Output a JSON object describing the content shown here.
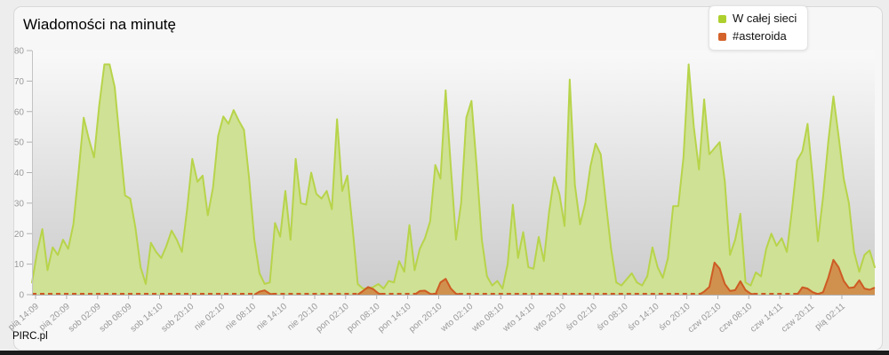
{
  "page": {
    "brand": "PIRC.pl"
  },
  "chart_data": {
    "type": "area",
    "title": "Wiadomości na minutę",
    "ylim": [
      0,
      80
    ],
    "y_tick_step": 10,
    "grid": false,
    "legend_position": "top-right",
    "plot_bg_gradient": [
      "#f9f9f9",
      "#cbcbcb"
    ],
    "x_tick_labels": [
      "pią 14:09",
      "pią 20:09",
      "sob 02:09",
      "sob 08:09",
      "sob 14:10",
      "sob 20:10",
      "nie 02:10",
      "nie 08:10",
      "nie 14:10",
      "nie 20:10",
      "pon 02:10",
      "pon 08:10",
      "pon 14:10",
      "pon 20:10",
      "wto 02:10",
      "wto 08:10",
      "wto 14:10",
      "wto 20:10",
      "śro 02:10",
      "śro 08:10",
      "śro 14:10",
      "śro 20:10",
      "czw 02:10",
      "czw 08:10",
      "czw 14:11",
      "czw 20:11",
      "pią 02:11"
    ],
    "legend": [
      {
        "name": "W całej sieci",
        "color": "#aed02f"
      },
      {
        "name": "#asteroida",
        "color": "#d4632b"
      }
    ],
    "series": [
      {
        "name": "W całej sieci",
        "stroke": "#b7d44a",
        "fill": "#cfe195",
        "values": [
          4,
          14,
          21.5,
          8,
          15.5,
          13,
          18,
          15,
          23,
          40,
          58,
          51,
          45,
          62,
          75.5,
          75.5,
          68,
          50,
          32.5,
          31.5,
          22,
          9,
          3.5,
          17,
          14,
          12,
          16,
          21,
          18,
          14,
          28,
          44.5,
          37,
          39,
          26,
          35,
          52,
          58.4,
          56,
          60.5,
          57,
          54,
          38,
          18,
          7,
          3.5,
          4,
          23.5,
          19,
          34,
          18,
          44.5,
          30,
          29.5,
          40,
          33,
          31.5,
          34,
          28,
          57.5,
          34,
          39,
          22,
          3.5,
          2,
          2,
          2.5,
          3.5,
          2,
          4.5,
          4,
          11,
          7.5,
          22.8,
          8,
          15,
          18.5,
          24,
          42.5,
          38,
          67,
          42,
          18,
          30,
          58,
          63.5,
          42,
          18,
          6,
          3,
          4.5,
          2,
          10,
          29.5,
          12,
          20.5,
          9,
          8.5,
          18.9,
          11,
          27,
          38.5,
          33,
          22.5,
          70.5,
          36,
          23,
          30,
          42,
          49.5,
          46,
          30,
          15,
          4,
          3,
          5,
          7,
          4,
          3,
          6,
          15.5,
          9,
          5.5,
          12,
          29,
          29,
          45,
          75.5,
          55,
          41,
          64,
          46,
          48,
          50,
          37,
          13,
          18,
          26.5,
          4,
          3,
          7.3,
          6,
          15,
          20,
          16,
          18.5,
          14,
          28,
          44,
          47,
          56,
          38,
          17.5,
          32,
          50,
          65,
          52,
          38,
          30,
          14,
          7.5,
          13,
          14.5,
          9
        ]
      },
      {
        "name": "#asteroida",
        "stroke": "#cd5b24",
        "fill": "rgba(210,92,32,0.6)",
        "baseline_style": "dashed",
        "values": [
          0,
          0,
          0,
          0,
          0,
          0,
          0,
          0,
          0,
          0,
          0,
          0,
          0,
          0,
          0,
          0,
          0,
          0,
          0,
          0,
          0,
          0,
          0,
          0,
          0,
          0,
          0,
          0,
          0,
          0,
          0,
          0,
          0,
          0,
          0,
          0,
          0,
          0,
          0,
          0,
          0,
          0,
          0,
          0,
          1,
          1.4,
          0.3,
          0,
          0,
          0,
          0,
          0,
          0,
          0,
          0,
          0,
          0,
          0,
          0,
          0,
          0,
          0,
          0,
          0,
          1.2,
          2.5,
          1.8,
          0.4,
          0,
          0,
          0,
          0,
          0,
          0,
          0,
          1.2,
          1.3,
          0.3,
          0,
          4,
          5.2,
          2,
          0.3,
          0,
          0,
          0,
          0,
          0,
          0,
          0,
          0,
          0,
          0,
          0,
          0,
          0,
          0,
          0,
          0,
          0,
          0,
          0,
          0,
          0,
          0,
          0,
          0,
          0,
          0,
          0,
          0,
          0,
          0,
          0,
          0,
          0,
          0,
          0,
          0,
          0,
          0,
          0,
          0,
          0,
          0,
          0,
          0,
          0,
          0,
          0,
          1,
          2.5,
          10.5,
          8.5,
          3.5,
          1.2,
          1.5,
          4.4,
          1.5,
          0.3,
          0,
          0,
          0,
          0,
          0,
          0,
          0,
          0,
          0,
          2.4,
          2,
          0.8,
          0.2,
          0.8,
          5.5,
          11.4,
          9,
          4.5,
          2.2,
          2.4,
          4.7,
          2,
          1.6,
          2.3
        ]
      }
    ]
  }
}
